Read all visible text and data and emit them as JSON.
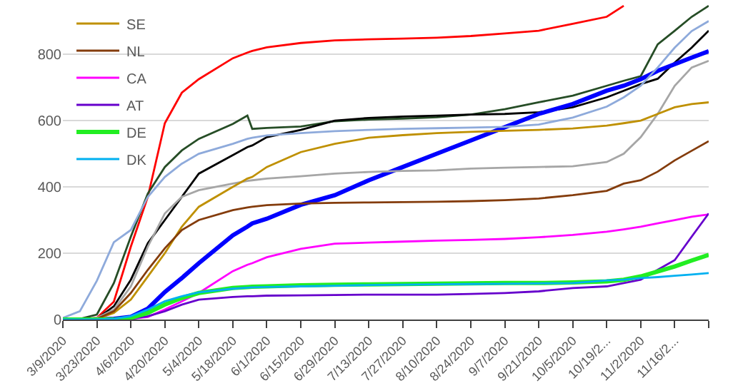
{
  "chart_data": {
    "type": "line",
    "x": [
      "2020-03-09",
      "2020-03-16",
      "2020-03-23",
      "2020-03-30",
      "2020-04-06",
      "2020-04-13",
      "2020-04-20",
      "2020-04-27",
      "2020-05-04",
      "2020-05-18",
      "2020-05-24",
      "2020-05-26",
      "2020-06-01",
      "2020-06-15",
      "2020-06-29",
      "2020-07-13",
      "2020-07-27",
      "2020-08-10",
      "2020-08-24",
      "2020-09-07",
      "2020-09-21",
      "2020-10-05",
      "2020-10-19",
      "2020-10-26",
      "2020-11-02",
      "2020-11-09",
      "2020-11-16",
      "2020-11-23",
      "2020-11-30"
    ],
    "series": [
      {
        "color": "#ff0000",
        "values": [
          0,
          0,
          5,
          54,
          220,
          370,
          592,
          684,
          725,
          788,
          805,
          810,
          821,
          834,
          842,
          845,
          847,
          850,
          855,
          863,
          871,
          892,
          913,
          946,
          null,
          null,
          null,
          null,
          null
        ]
      },
      {
        "color": "#264d26",
        "values": [
          0,
          2,
          15,
          110,
          250,
          380,
          460,
          510,
          545,
          590,
          615,
          575,
          578,
          582,
          598,
          603,
          606,
          610,
          618,
          634,
          655,
          675,
          705,
          720,
          734,
          830,
          871,
          913,
          946
        ]
      },
      {
        "color": "#000000",
        "values": [
          0,
          0,
          2,
          40,
          120,
          230,
          300,
          370,
          440,
          496,
          520,
          525,
          550,
          572,
          600,
          608,
          612,
          615,
          618,
          620,
          625,
          640,
          670,
          690,
          710,
          726,
          775,
          820,
          871
        ]
      },
      {
        "color": "#0000ff",
        "values": [
          0,
          0,
          0,
          2,
          8,
          33,
          83,
          125,
          170,
          254,
          280,
          290,
          304,
          346,
          375,
          420,
          460,
          500,
          540,
          580,
          620,
          650,
          690,
          705,
          725,
          750,
          770,
          790,
          809
        ]
      },
      {
        "color": "#8eaadb",
        "values": [
          5,
          25,
          117,
          233,
          270,
          370,
          430,
          470,
          500,
          530,
          545,
          548,
          555,
          562,
          568,
          572,
          575,
          577,
          579,
          581,
          588,
          609,
          642,
          670,
          705,
          760,
          820,
          870,
          900
        ]
      },
      {
        "color": "#a6a6a6",
        "values": [
          0,
          0,
          5,
          30,
          100,
          220,
          320,
          370,
          390,
          410,
          418,
          420,
          425,
          432,
          440,
          445,
          448,
          450,
          455,
          458,
          460,
          462,
          475,
          500,
          550,
          620,
          705,
          760,
          780
        ]
      },
      {
        "name": "SE",
        "color": "#bf9000",
        "values": [
          0,
          0,
          2,
          20,
          60,
          130,
          200,
          280,
          340,
          400,
          425,
          430,
          460,
          505,
          530,
          548,
          556,
          562,
          566,
          569,
          572,
          576,
          585,
          592,
          600,
          620,
          640,
          650,
          655
        ]
      },
      {
        "name": "NL",
        "color": "#843c0c",
        "values": [
          0,
          0,
          2,
          25,
          80,
          150,
          215,
          270,
          300,
          330,
          338,
          340,
          345,
          350,
          352,
          353,
          354,
          355,
          357,
          360,
          365,
          375,
          388,
          410,
          420,
          446,
          480,
          509,
          538
        ]
      },
      {
        "name": "CA",
        "color": "#ff00ff",
        "values": [
          null,
          null,
          null,
          0,
          2,
          8,
          30,
          55,
          80,
          146,
          165,
          170,
          188,
          213,
          229,
          232,
          235,
          238,
          240,
          243,
          248,
          255,
          265,
          272,
          280,
          290,
          300,
          310,
          317
        ]
      },
      {
        "name": "AT",
        "color": "#6600cc",
        "values": [
          null,
          null,
          null,
          0,
          2,
          10,
          25,
          45,
          60,
          68,
          70,
          70,
          72,
          73,
          74,
          75,
          75,
          75,
          77,
          80,
          85,
          95,
          100,
          110,
          120,
          150,
          179,
          250,
          320
        ]
      },
      {
        "name": "DE",
        "color": "#22ee22",
        "values": [
          0,
          0,
          0,
          0,
          5,
          20,
          45,
          65,
          80,
          95,
          98,
          99,
          100,
          103,
          105,
          106,
          107,
          108,
          109,
          110,
          110,
          112,
          115,
          120,
          130,
          145,
          160,
          178,
          195
        ]
      },
      {
        "name": "DK",
        "color": "#00b0f0",
        "values": [
          0,
          0,
          0,
          2,
          10,
          30,
          55,
          70,
          82,
          93,
          96,
          97,
          98,
          100,
          102,
          104,
          105,
          106,
          107,
          108,
          109,
          110,
          118,
          120,
          125,
          128,
          132,
          136,
          140
        ]
      }
    ],
    "xlim": [
      "2020-03-09",
      "2020-11-30"
    ],
    "xticks": [
      {
        "value": "2020-03-09",
        "label": "3/9/2020"
      },
      {
        "value": "2020-03-23",
        "label": "3/23/2020"
      },
      {
        "value": "2020-04-06",
        "label": "4/6/2020"
      },
      {
        "value": "2020-04-20",
        "label": "4/20/2020"
      },
      {
        "value": "2020-05-04",
        "label": "5/4/2020"
      },
      {
        "value": "2020-05-18",
        "label": "5/18/2020"
      },
      {
        "value": "2020-06-01",
        "label": "6/1/2020"
      },
      {
        "value": "2020-06-15",
        "label": "6/15/2020"
      },
      {
        "value": "2020-06-29",
        "label": "6/29/2020"
      },
      {
        "value": "2020-07-13",
        "label": "7/13/2020"
      },
      {
        "value": "2020-07-27",
        "label": "7/27/2020"
      },
      {
        "value": "2020-08-10",
        "label": "8/10/2020"
      },
      {
        "value": "2020-08-24",
        "label": "8/24/2020"
      },
      {
        "value": "2020-09-07",
        "label": "9/7/2020"
      },
      {
        "value": "2020-09-21",
        "label": "9/21/2020"
      },
      {
        "value": "2020-10-05",
        "label": "10/5/2020"
      },
      {
        "value": "2020-10-19",
        "label": "10/19/2..."
      },
      {
        "value": "2020-11-02",
        "label": "11/2/2020"
      },
      {
        "value": "2020-11-16",
        "label": "11/16/2..."
      },
      {
        "value": "2020-11-30",
        "label": null
      }
    ],
    "ylim": [
      0,
      955
    ],
    "yticks": [
      0,
      200,
      400,
      600,
      800
    ],
    "grid": "y",
    "legend": "top left",
    "marker": "none",
    "line_style": "solid"
  }
}
